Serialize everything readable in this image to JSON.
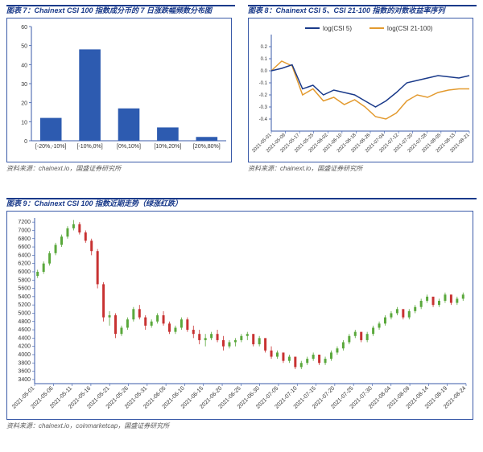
{
  "panel7": {
    "title": "图表 7：Chainext CSI 100 指数成分币的 7 日涨跌幅频数分布图",
    "source": "资料来源：chainext.io，国盛证券研究所",
    "chart": {
      "type": "bar",
      "categories": [
        "[-20%,-10%]",
        "[-10%,0%]",
        "[0%,10%]",
        "[10%,20%]",
        "[20%,80%]"
      ],
      "values": [
        12,
        48,
        17,
        7,
        2
      ],
      "bar_color": "#2d5bb0",
      "ylim": [
        0,
        60
      ],
      "ytick_step": 10,
      "bar_width": 0.55,
      "axis_color": "#3a5aa8",
      "label_fontsize": 7,
      "tick_fontsize": 7,
      "background": "#ffffff"
    }
  },
  "panel8": {
    "title": "图表 8：Chainext CSI 5、CSI 21-100 指数的对数收益率序列",
    "source": "资料来源：chainext.io，国盛证券研究所",
    "chart": {
      "type": "line",
      "legend": [
        "log(CSI 5)",
        "log(CSI 21-100)"
      ],
      "legend_colors": [
        "#1a3a8a",
        "#e39a2e"
      ],
      "x_labels": [
        "2021-05-01",
        "2021-05-09",
        "2021-05-17",
        "2021-05-25",
        "2021-06-02",
        "2021-06-10",
        "2021-06-18",
        "2021-06-26",
        "2021-07-04",
        "2021-07-12",
        "2021-07-20",
        "2021-07-28",
        "2021-08-05",
        "2021-08-13",
        "2021-08-21"
      ],
      "ylim": [
        -0.5,
        0.3
      ],
      "yticks": [
        -0.4,
        -0.3,
        -0.2,
        -0.1,
        0,
        0.1,
        0.2
      ],
      "series1": [
        0,
        0.02,
        0.05,
        -0.15,
        -0.12,
        -0.2,
        -0.16,
        -0.18,
        -0.2,
        -0.25,
        -0.3,
        -0.25,
        -0.18,
        -0.1,
        -0.08,
        -0.06,
        -0.04,
        -0.05,
        -0.06,
        -0.04
      ],
      "series2": [
        0,
        0.08,
        0.04,
        -0.2,
        -0.15,
        -0.25,
        -0.22,
        -0.28,
        -0.24,
        -0.3,
        -0.38,
        -0.4,
        -0.35,
        -0.25,
        -0.2,
        -0.22,
        -0.18,
        -0.16,
        -0.15,
        -0.15
      ],
      "line_width": 1.5,
      "tick_fontsize": 6,
      "axis_color": "#3a5aa8",
      "background": "#ffffff"
    }
  },
  "panel9": {
    "title": "图表 9：Chainext CSI 100 指数近期走势（绿涨红跌）",
    "source": "资料来源：chainext.io，coinmarketcap，国盛证券研究所",
    "chart": {
      "type": "candlestick",
      "up_color": "#5aa83c",
      "down_color": "#c83232",
      "wick_color_up": "#5aa83c",
      "wick_color_down": "#c83232",
      "axis_color": "#3a5aa8",
      "background": "#ffffff",
      "ylim": [
        3300,
        7300
      ],
      "yticks": [
        3400,
        3600,
        3800,
        4000,
        4200,
        4400,
        4600,
        4800,
        5000,
        5200,
        5400,
        5600,
        5800,
        6000,
        6200,
        6400,
        6600,
        6800,
        7000,
        7200
      ],
      "x_labels": [
        "2021-05-01",
        "2021-05-06",
        "2021-05-11",
        "2021-05-16",
        "2021-05-21",
        "2021-05-26",
        "2021-05-31",
        "2021-06-05",
        "2021-06-10",
        "2021-06-15",
        "2021-06-20",
        "2021-06-25",
        "2021-06-30",
        "2021-07-05",
        "2021-07-10",
        "2021-07-15",
        "2021-07-20",
        "2021-07-25",
        "2021-07-30",
        "2021-08-04",
        "2021-08-09",
        "2021-08-14",
        "2021-08-19",
        "2021-08-24"
      ],
      "candle_width": 3,
      "tick_fontsize": 7,
      "candles": [
        [
          5900,
          6050,
          5850,
          6000
        ],
        [
          6000,
          6250,
          5950,
          6200
        ],
        [
          6200,
          6500,
          6150,
          6450
        ],
        [
          6450,
          6700,
          6400,
          6650
        ],
        [
          6650,
          6900,
          6600,
          6850
        ],
        [
          6850,
          7100,
          6800,
          7050
        ],
        [
          7050,
          7250,
          7000,
          7150
        ],
        [
          7150,
          7200,
          6900,
          6950
        ],
        [
          6950,
          7000,
          6700,
          6750
        ],
        [
          6750,
          6800,
          6400,
          6500
        ],
        [
          6500,
          6550,
          5600,
          5700
        ],
        [
          5700,
          5750,
          4800,
          4900
        ],
        [
          4900,
          5050,
          4700,
          4950
        ],
        [
          4950,
          5000,
          4400,
          4500
        ],
        [
          4500,
          4700,
          4450,
          4650
        ],
        [
          4650,
          4900,
          4600,
          4850
        ],
        [
          4850,
          5150,
          4800,
          5100
        ],
        [
          5100,
          5200,
          4850,
          4900
        ],
        [
          4900,
          4950,
          4600,
          4700
        ],
        [
          4700,
          4850,
          4650,
          4800
        ],
        [
          4800,
          5000,
          4750,
          4950
        ],
        [
          4950,
          5050,
          4700,
          4750
        ],
        [
          4750,
          4800,
          4500,
          4550
        ],
        [
          4550,
          4700,
          4500,
          4650
        ],
        [
          4650,
          4900,
          4600,
          4850
        ],
        [
          4850,
          4900,
          4550,
          4600
        ],
        [
          4600,
          4700,
          4400,
          4500
        ],
        [
          4500,
          4600,
          4250,
          4350
        ],
        [
          4350,
          4500,
          4200,
          4400
        ],
        [
          4400,
          4550,
          4350,
          4500
        ],
        [
          4500,
          4600,
          4300,
          4350
        ],
        [
          4350,
          4450,
          4100,
          4200
        ],
        [
          4200,
          4350,
          4150,
          4300
        ],
        [
          4300,
          4400,
          4200,
          4350
        ],
        [
          4350,
          4500,
          4300,
          4450
        ],
        [
          4450,
          4550,
          4350,
          4500
        ],
        [
          4500,
          4400,
          4200,
          4250
        ],
        [
          4250,
          4450,
          4200,
          4400
        ],
        [
          4400,
          4300,
          4050,
          4100
        ],
        [
          4100,
          4200,
          3900,
          3950
        ],
        [
          3950,
          4100,
          3900,
          4050
        ],
        [
          4050,
          3950,
          3800,
          3850
        ],
        [
          3850,
          4000,
          3800,
          3950
        ],
        [
          3950,
          3900,
          3650,
          3700
        ],
        [
          3700,
          3850,
          3650,
          3800
        ],
        [
          3800,
          3950,
          3750,
          3900
        ],
        [
          3900,
          4050,
          3850,
          4000
        ],
        [
          4000,
          3950,
          3750,
          3800
        ],
        [
          3800,
          3950,
          3750,
          3900
        ],
        [
          3900,
          4100,
          3850,
          4050
        ],
        [
          4050,
          4200,
          4000,
          4150
        ],
        [
          4150,
          4350,
          4100,
          4300
        ],
        [
          4300,
          4500,
          4250,
          4450
        ],
        [
          4450,
          4600,
          4400,
          4550
        ],
        [
          4550,
          4500,
          4300,
          4350
        ],
        [
          4350,
          4550,
          4300,
          4500
        ],
        [
          4500,
          4700,
          4450,
          4650
        ],
        [
          4650,
          4800,
          4600,
          4750
        ],
        [
          4750,
          4950,
          4700,
          4900
        ],
        [
          4900,
          5050,
          4850,
          5000
        ],
        [
          5000,
          5150,
          4950,
          5100
        ],
        [
          5100,
          5050,
          4850,
          4900
        ],
        [
          4900,
          5100,
          4850,
          5050
        ],
        [
          5050,
          5200,
          5000,
          5150
        ],
        [
          5150,
          5350,
          5100,
          5300
        ],
        [
          5300,
          5450,
          5250,
          5400
        ],
        [
          5400,
          5350,
          5150,
          5200
        ],
        [
          5200,
          5350,
          5150,
          5300
        ],
        [
          5300,
          5500,
          5250,
          5450
        ],
        [
          5450,
          5400,
          5200,
          5250
        ],
        [
          5250,
          5400,
          5200,
          5350
        ],
        [
          5350,
          5500,
          5300,
          5450
        ]
      ]
    }
  }
}
